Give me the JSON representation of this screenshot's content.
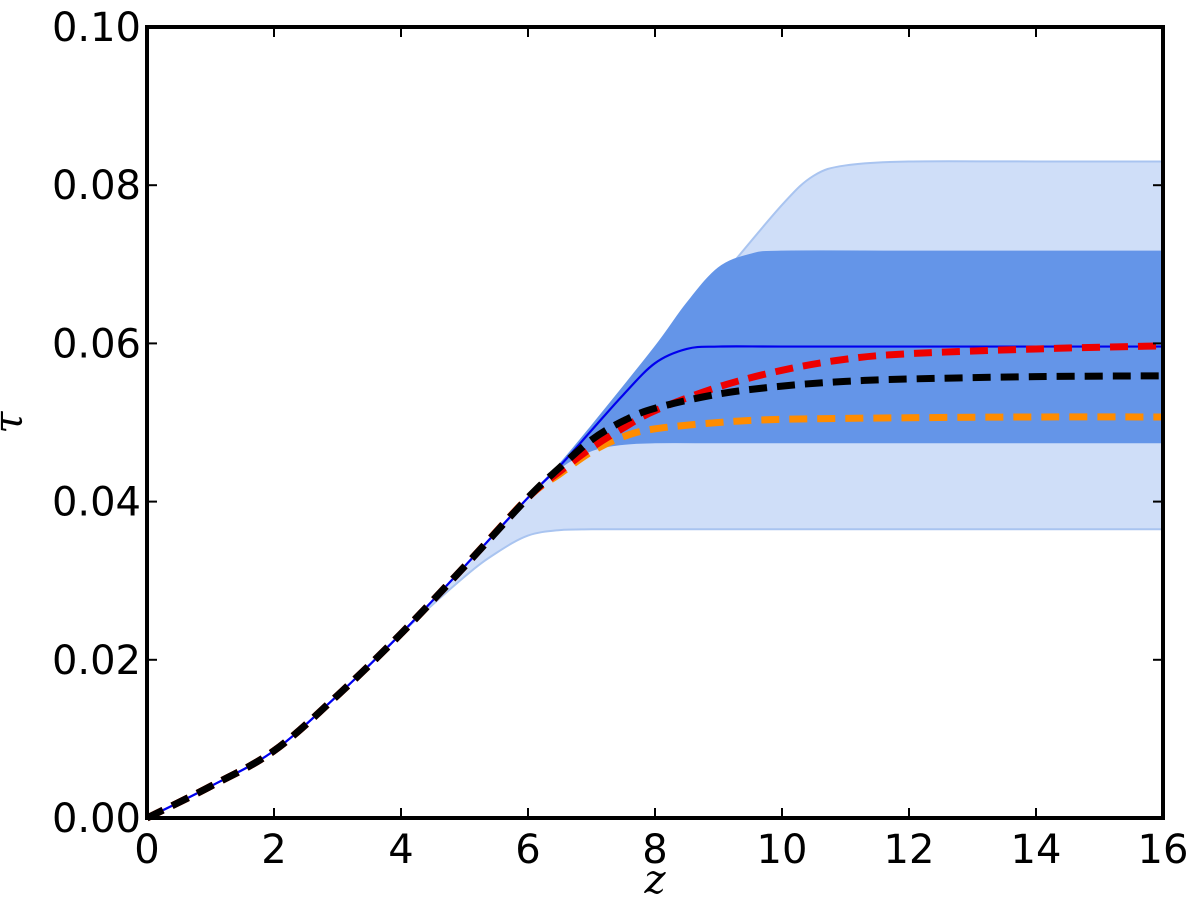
{
  "chart_data": {
    "type": "line",
    "title": "",
    "xlabel": "z",
    "ylabel": "τ",
    "xlim": [
      0,
      16
    ],
    "ylim": [
      0,
      0.1
    ],
    "xticks": [
      "0",
      "2",
      "4",
      "6",
      "8",
      "10",
      "12",
      "14",
      "16"
    ],
    "yticks": [
      "0.00",
      "0.02",
      "0.04",
      "0.06",
      "0.08",
      "0.10"
    ],
    "grid": false,
    "legend": "none",
    "bands": [
      {
        "level": "outer",
        "color": "#cfdef8",
        "edge_color": "#a9c4f0",
        "lower": {
          "x": [
            0,
            1,
            2,
            3,
            4,
            5,
            5.5,
            6,
            6.5,
            7,
            7.5,
            8,
            10,
            12,
            14,
            16
          ],
          "y": [
            0,
            0.004,
            0.0085,
            0.0155,
            0.0233,
            0.0305,
            0.0335,
            0.0357,
            0.0364,
            0.0365,
            0.0365,
            0.0365,
            0.0365,
            0.0365,
            0.0365,
            0.0365
          ]
        },
        "upper": {
          "x": [
            0,
            1,
            2,
            3,
            4,
            5,
            6,
            6.5,
            7,
            8,
            9,
            10,
            10.5,
            11,
            12,
            14,
            16
          ],
          "y": [
            0,
            0.004,
            0.0085,
            0.0155,
            0.0233,
            0.0318,
            0.0405,
            0.0445,
            0.049,
            0.0585,
            0.068,
            0.0775,
            0.0812,
            0.0825,
            0.083,
            0.083,
            0.083
          ]
        }
      },
      {
        "level": "inner",
        "color": "#6495e8",
        "edge_color": "#6495e8",
        "lower": {
          "x": [
            0,
            1,
            2,
            3,
            4,
            5,
            6,
            6.5,
            7,
            7.5,
            8,
            9,
            10,
            12,
            14,
            16
          ],
          "y": [
            0,
            0.004,
            0.0085,
            0.0155,
            0.0233,
            0.0318,
            0.0405,
            0.0443,
            0.0465,
            0.0473,
            0.0475,
            0.0475,
            0.0475,
            0.0475,
            0.0475,
            0.0475
          ]
        },
        "upper": {
          "x": [
            0,
            1,
            2,
            3,
            4,
            5,
            6,
            6.5,
            7,
            8,
            8.5,
            9,
            9.5,
            10,
            12,
            14,
            16
          ],
          "y": [
            0,
            0.004,
            0.0085,
            0.0155,
            0.0233,
            0.0318,
            0.0405,
            0.0447,
            0.0495,
            0.0595,
            0.065,
            0.0695,
            0.0712,
            0.0716,
            0.0716,
            0.0716,
            0.0716
          ]
        }
      }
    ],
    "series": [
      {
        "color": "#0000ee",
        "style": "solid",
        "width": 2.2,
        "x": [
          0,
          1,
          2,
          3,
          4,
          5,
          6,
          6.5,
          7,
          7.5,
          8,
          8.5,
          9,
          10,
          12,
          14,
          16
        ],
        "y": [
          0,
          0.004,
          0.0085,
          0.0155,
          0.0233,
          0.0318,
          0.0405,
          0.0445,
          0.049,
          0.0535,
          0.0575,
          0.0593,
          0.0596,
          0.0596,
          0.0596,
          0.0596,
          0.0596
        ]
      },
      {
        "color": "#ff8c00",
        "style": "dashed",
        "width": 7,
        "x": [
          0,
          1,
          2,
          3,
          4,
          5,
          6,
          6.5,
          7,
          7.5,
          8,
          9,
          10,
          12,
          14,
          16
        ],
        "y": [
          0,
          0.004,
          0.0085,
          0.0155,
          0.0233,
          0.0318,
          0.0405,
          0.0435,
          0.0463,
          0.0482,
          0.0492,
          0.05,
          0.0504,
          0.0506,
          0.0507,
          0.0507
        ]
      },
      {
        "color": "#ee0000",
        "style": "dashed",
        "width": 7,
        "x": [
          0,
          1,
          2,
          3,
          4,
          5,
          6,
          6.5,
          7,
          7.5,
          8,
          9,
          10,
          11,
          12,
          14,
          16
        ],
        "y": [
          0,
          0.004,
          0.0085,
          0.0155,
          0.0233,
          0.0318,
          0.0405,
          0.0438,
          0.0468,
          0.0493,
          0.0515,
          0.0545,
          0.0566,
          0.058,
          0.0587,
          0.0593,
          0.0597
        ]
      },
      {
        "color": "#000000",
        "style": "dashed",
        "width": 7,
        "x": [
          0,
          1,
          2,
          3,
          4,
          5,
          6,
          6.5,
          7,
          7.5,
          8,
          9,
          10,
          11,
          12,
          14,
          16
        ],
        "y": [
          0,
          0.004,
          0.0085,
          0.0155,
          0.0233,
          0.0318,
          0.0405,
          0.0443,
          0.0478,
          0.0502,
          0.0518,
          0.0536,
          0.0546,
          0.0552,
          0.0555,
          0.0558,
          0.0559
        ]
      }
    ]
  }
}
